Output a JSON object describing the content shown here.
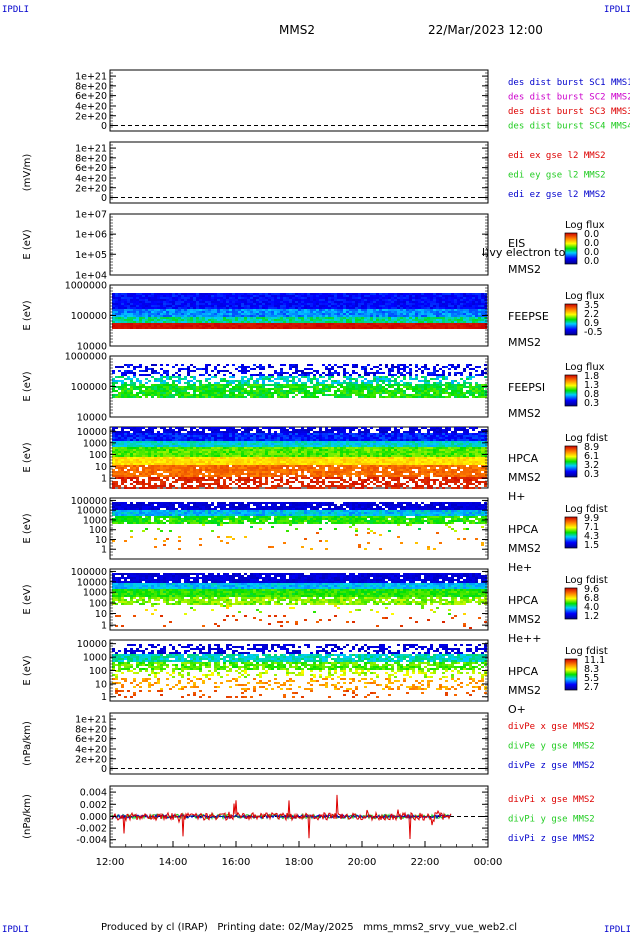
{
  "header": {
    "corner_tl": "IPDLI",
    "corner_tr": "IPDLI",
    "corner_bl": "IPDLI",
    "corner_br": "IPDLI",
    "spacecraft": "MMS2",
    "datetime": "22/Mar/2023 12:00"
  },
  "footer": {
    "text": "Produced by cl (IRAP)   Printing date: 02/May/2025   mms_mms2_srvy_vue_web2.cl"
  },
  "colors": {
    "red": "#dd0000",
    "magenta": "#cc00cc",
    "green": "#22cc22",
    "blue": "#0000cc"
  },
  "chart_data": [
    {
      "type": "line",
      "ylabel": "",
      "yticks": [
        "1e+21",
        "8e+20",
        "6e+20",
        "4e+20",
        "2e+20",
        "0"
      ],
      "ylim": [
        0,
        1.1e+21
      ],
      "legend": [
        {
          "text": "des dist burst SC1 MMS1",
          "color": "#0000cc"
        },
        {
          "text": "des dist burst SC2 MMS2",
          "color": "#cc00cc"
        },
        {
          "text": "des dist burst SC3 MMS3",
          "color": "#dd0000"
        },
        {
          "text": "des dist burst SC4 MMS4",
          "color": "#22cc22"
        }
      ]
    },
    {
      "type": "line",
      "ylabel": "(mV/m)",
      "yticks": [
        "1e+21",
        "8e+20",
        "6e+20",
        "4e+20",
        "2e+20",
        "0"
      ],
      "ylim": [
        0,
        1.1e+21
      ],
      "legend": [
        {
          "text": "edi ex gse l2 MMS2",
          "color": "#dd0000"
        },
        {
          "text": "edi ey gse l2 MMS2",
          "color": "#22cc22"
        },
        {
          "text": "edi ez gse l2 MMS2",
          "color": "#0000cc"
        }
      ]
    },
    {
      "type": "heatmap",
      "ylabel": "E (eV)",
      "yticks": [
        "1e+07",
        "1e+06",
        "1e+05",
        "1e+04"
      ],
      "yscale": "log",
      "side": [
        "EIS",
        "MMS2"
      ],
      "overlay": "l)vy electron to",
      "cbar_title": "Log flux",
      "cbar_ticks": [
        "0.0",
        "0.0",
        "0.0",
        "0.0"
      ]
    },
    {
      "type": "heatmap",
      "ylabel": "E (eV)",
      "yticks": [
        "1000000",
        "100000",
        "10000"
      ],
      "yscale": "log",
      "side": [
        "FEEPSE",
        "MMS2"
      ],
      "cbar_title": "Log flux",
      "cbar_ticks": [
        "3.5",
        "2.2",
        "0.9",
        "-0.5"
      ]
    },
    {
      "type": "heatmap",
      "ylabel": "E (eV)",
      "yticks": [
        "1000000",
        "100000",
        "10000"
      ],
      "yscale": "log",
      "side": [
        "FEEPSI",
        "MMS2"
      ],
      "cbar_title": "Log flux",
      "cbar_ticks": [
        "1.8",
        "1.3",
        "0.8",
        "0.3"
      ]
    },
    {
      "type": "heatmap",
      "ylabel": "E (eV)",
      "yticks": [
        "10000",
        "1000",
        "100",
        "10",
        "1"
      ],
      "yscale": "log",
      "side": [
        "HPCA",
        "MMS2",
        "H+"
      ],
      "cbar_title": "Log fdist",
      "cbar_ticks": [
        "8.9",
        "6.1",
        "3.2",
        "0.3"
      ]
    },
    {
      "type": "heatmap",
      "ylabel": "E (eV)",
      "yticks": [
        "100000",
        "10000",
        "1000",
        "100",
        "10",
        "1"
      ],
      "yscale": "log",
      "side": [
        "HPCA",
        "MMS2",
        "He+"
      ],
      "cbar_title": "Log fdist",
      "cbar_ticks": [
        "9.9",
        "7.1",
        "4.3",
        "1.5"
      ]
    },
    {
      "type": "heatmap",
      "ylabel": "E (eV)",
      "yticks": [
        "100000",
        "10000",
        "1000",
        "100",
        "10",
        "1"
      ],
      "yscale": "log",
      "side": [
        "HPCA",
        "MMS2",
        "He++"
      ],
      "cbar_title": "Log fdist",
      "cbar_ticks": [
        "9.6",
        "6.8",
        "4.0",
        "1.2"
      ]
    },
    {
      "type": "heatmap",
      "ylabel": "E (eV)",
      "yticks": [
        "10000",
        "1000",
        "100",
        "10",
        "1"
      ],
      "yscale": "log",
      "side": [
        "HPCA",
        "MMS2",
        "O+"
      ],
      "cbar_title": "Log fdist",
      "cbar_ticks": [
        "11.1",
        "8.3",
        "5.5",
        "2.7"
      ]
    },
    {
      "type": "line",
      "ylabel": "(nPa/km)",
      "yticks": [
        "1e+21",
        "8e+20",
        "6e+20",
        "4e+20",
        "2e+20",
        "0"
      ],
      "ylim": [
        0,
        1.1e+21
      ],
      "legend": [
        {
          "text": "divPe x gse MMS2",
          "color": "#dd0000"
        },
        {
          "text": "divPe y gse MMS2",
          "color": "#22cc22"
        },
        {
          "text": "divPe z gse MMS2",
          "color": "#0000cc"
        }
      ]
    },
    {
      "type": "line",
      "ylabel": "(nPa/km)",
      "yticks": [
        "0.004",
        "0.002",
        "0.000",
        "-0.002",
        "-0.004"
      ],
      "ylim": [
        -0.005,
        0.005
      ],
      "legend": [
        {
          "text": "divPi x gse MMS2",
          "color": "#dd0000"
        },
        {
          "text": "divPi y gse MMS2",
          "color": "#22cc22"
        },
        {
          "text": "divPi z gse MMS2",
          "color": "#0000cc"
        }
      ]
    }
  ],
  "xaxis": {
    "ticks": [
      "12:00",
      "14:00",
      "16:00",
      "18:00",
      "20:00",
      "22:00",
      "00:00"
    ]
  }
}
